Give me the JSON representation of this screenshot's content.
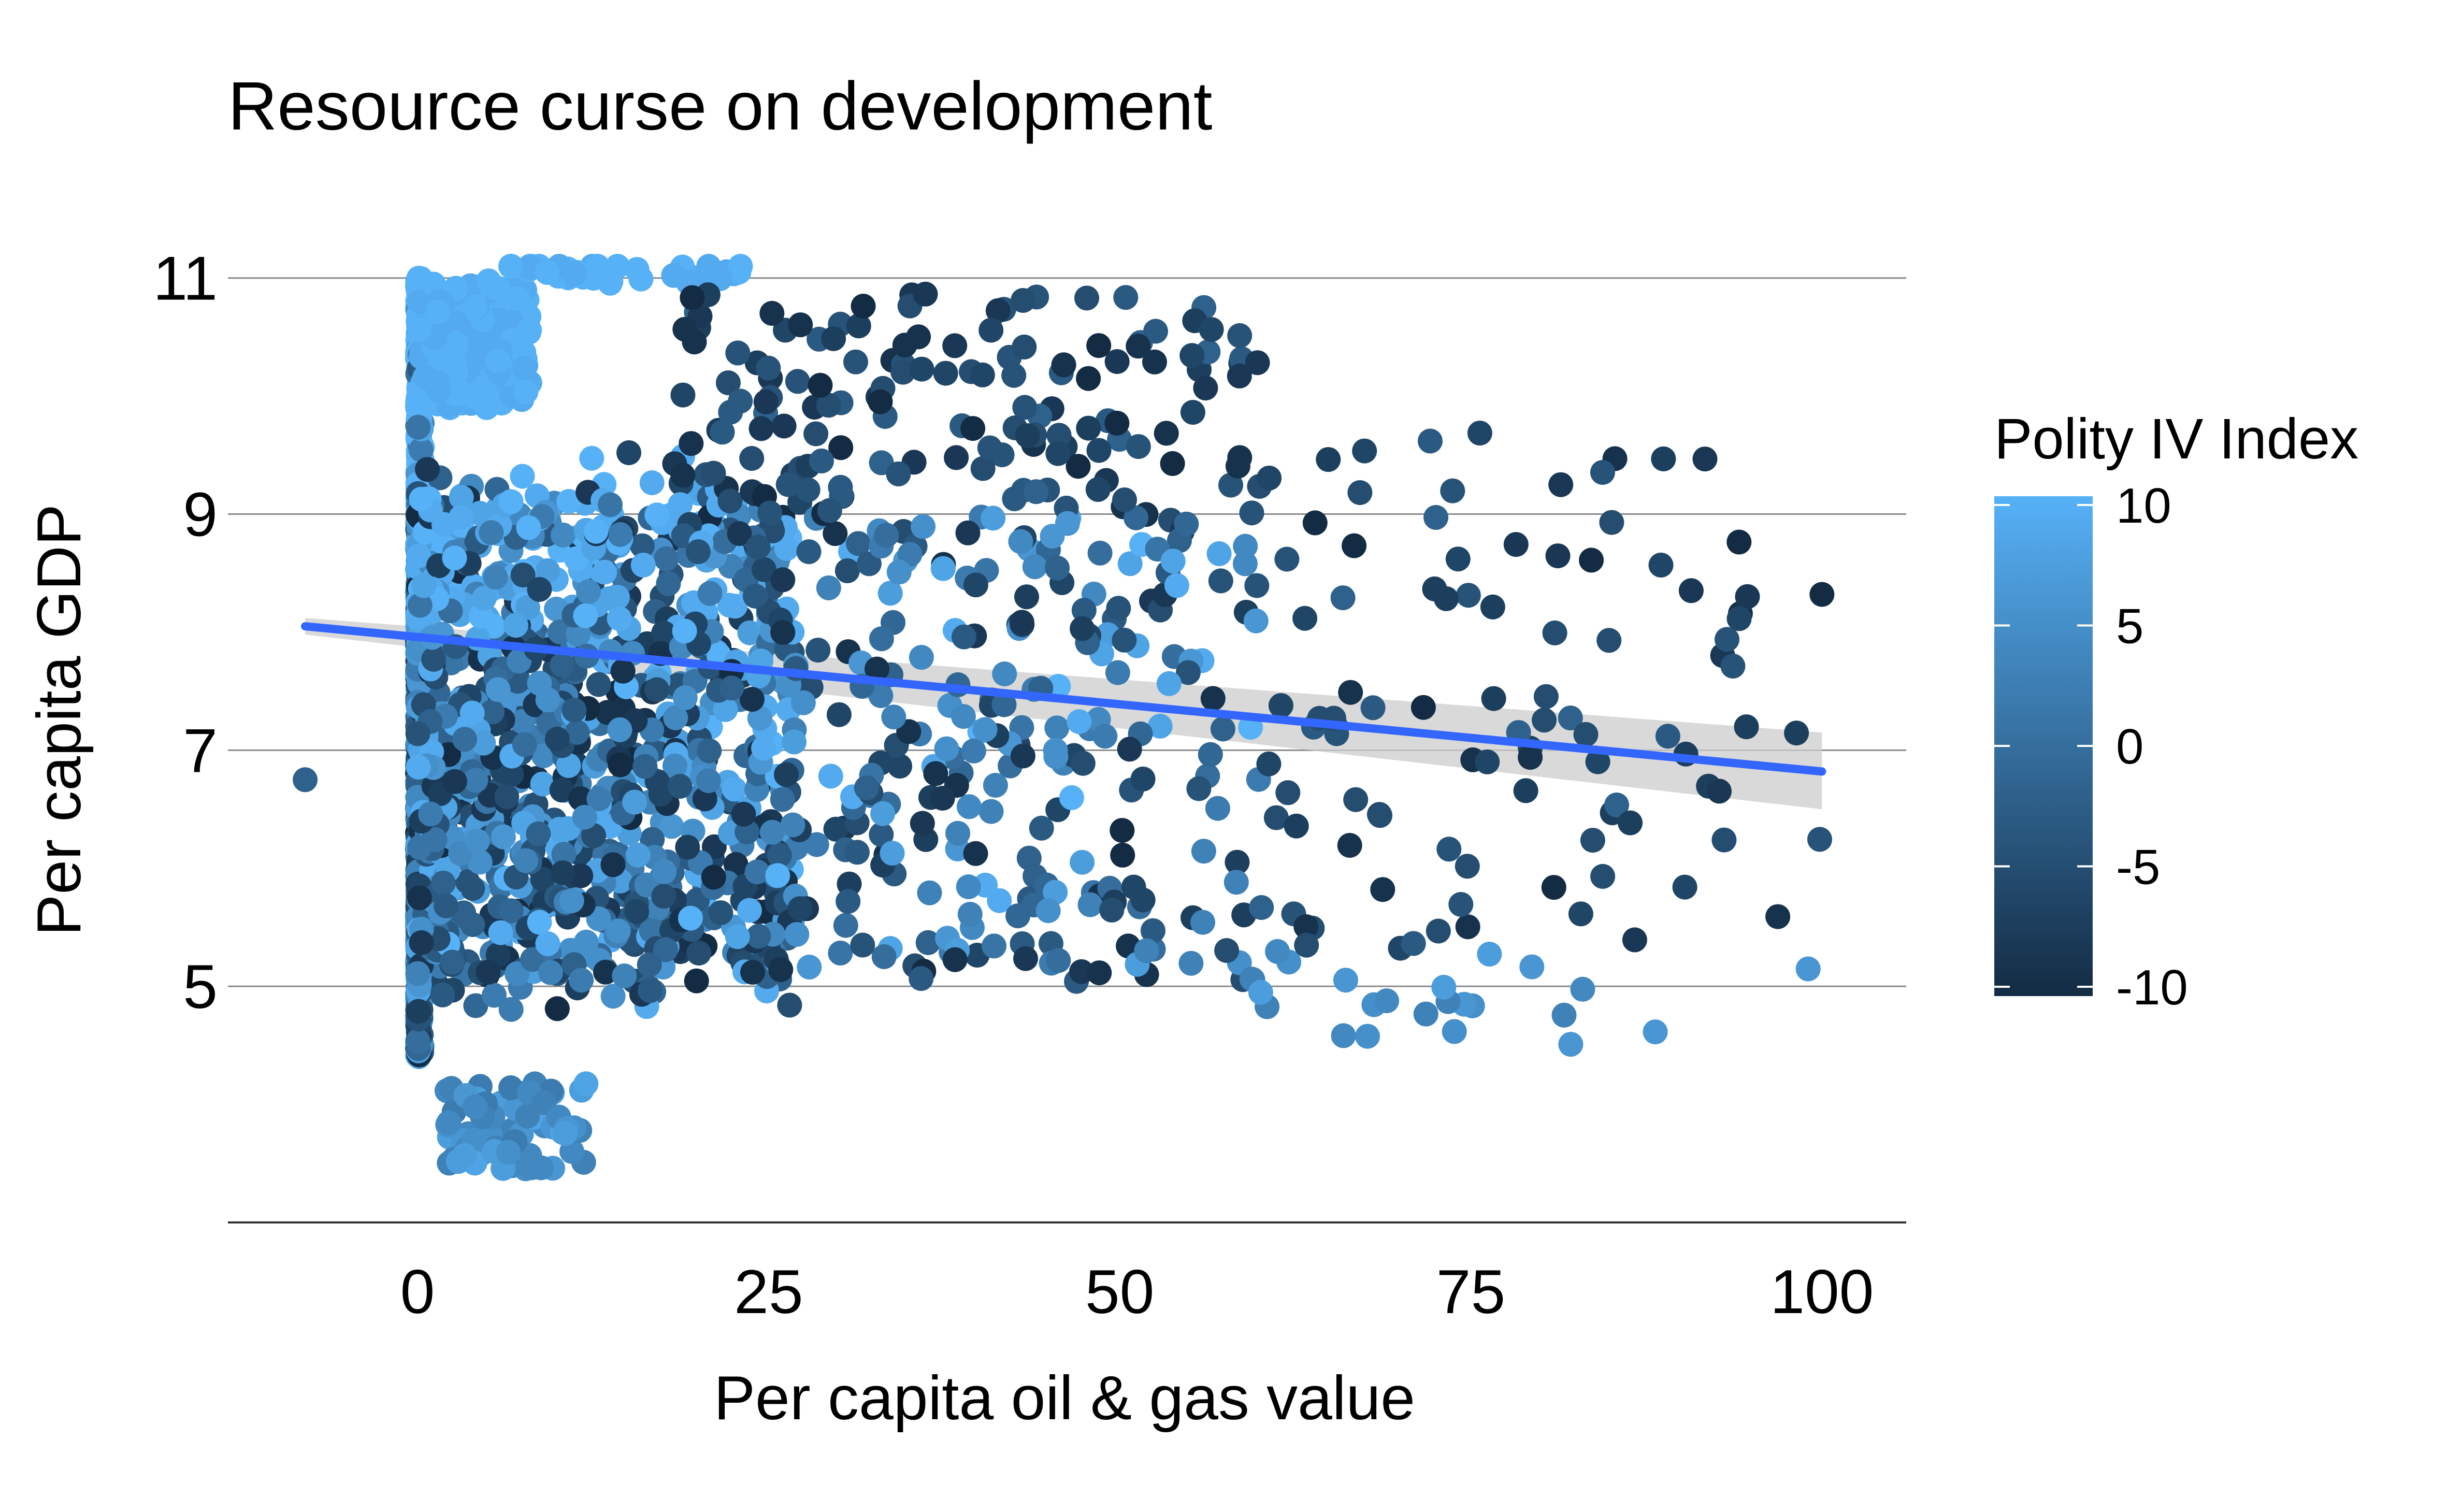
{
  "chart_data": {
    "type": "scatter",
    "title": "Resource curse on development",
    "xlabel": "Per capita oil & gas value",
    "ylabel": "Per capita GDP",
    "xlim": [
      -13.5,
      106
    ],
    "ylim": [
      3.0,
      11.6
    ],
    "x_ticks": [
      0,
      25,
      50,
      75,
      100
    ],
    "x_tick_labels": [
      "0",
      "25",
      "50",
      "75",
      "100"
    ],
    "y_ticks": [
      5,
      7,
      9,
      11
    ],
    "y_tick_labels": [
      "5",
      "7",
      "9",
      "11"
    ],
    "grid": "horizontal major only",
    "legend": {
      "title": "Polity IV Index",
      "placement": "right",
      "min": -10,
      "max": 10,
      "ticks": [
        10,
        5,
        0,
        -5,
        -10
      ],
      "tick_labels": [
        "10",
        "5",
        "0",
        "-5",
        "-10"
      ],
      "color_low": "#132B43",
      "color_high": "#56B1F7"
    },
    "trend_line": {
      "method": "linear fit with confidence band",
      "x": [
        -8,
        100
      ],
      "y": [
        8.05,
        6.82
      ],
      "band_at_start": [
        7.98,
        8.12
      ],
      "band_at_end": [
        6.5,
        7.15
      ],
      "color": "#3366FF",
      "band_color": "#CCCCCC"
    },
    "point_count": 2600,
    "points_note": "Points are densest at x=0..20, y=4.4..11; scatter thins out toward x=100"
  }
}
